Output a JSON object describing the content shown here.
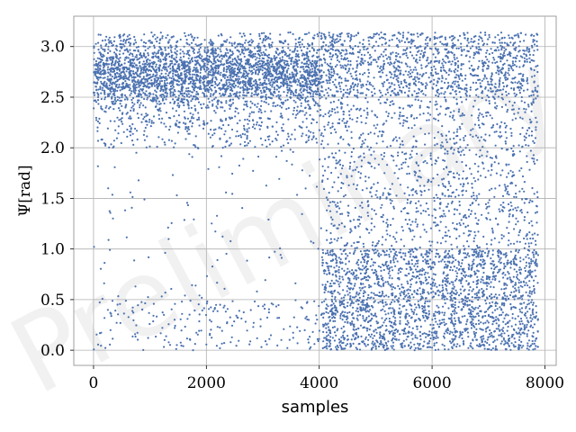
{
  "chart_data": {
    "type": "scatter",
    "title": "",
    "xlabel": "samples",
    "ylabel": "Ψ[rad]",
    "xlim": [
      -350,
      8200
    ],
    "ylim": [
      -0.15,
      3.3
    ],
    "xticks": [
      0,
      2000,
      4000,
      6000,
      8000
    ],
    "yticks": [
      0.0,
      0.5,
      1.0,
      1.5,
      2.0,
      2.5,
      3.0
    ],
    "xtick_labels": [
      "0",
      "2000",
      "4000",
      "6000",
      "8000"
    ],
    "ytick_labels": [
      "0.0",
      "0.5",
      "1.0",
      "1.5",
      "2.0",
      "2.5",
      "3.0"
    ],
    "grid": true,
    "legend": "none",
    "marker_color": "#4c72b0",
    "watermark": "Preliminary",
    "series": [
      {
        "segments": [
          {
            "x_range": [
              0,
              4050
            ],
            "points": 3600,
            "clusters": [
              {
                "weight": 0.86,
                "y_mean": 2.72,
                "y_sd": 0.2,
                "y_min": 2.15,
                "y_max": 3.14
              },
              {
                "weight": 0.06,
                "y_range": [
                  2.0,
                  2.3
                ]
              },
              {
                "weight": 0.03,
                "y_range": [
                  0.3,
                  2.0
                ]
              },
              {
                "weight": 0.05,
                "y_range": [
                  0.0,
                  0.5
                ]
              }
            ]
          },
          {
            "x_range": [
              4050,
              7880
            ],
            "points": 4600,
            "clusters": [
              {
                "weight": 0.26,
                "y_range": [
                  2.5,
                  3.14
                ]
              },
              {
                "weight": 0.24,
                "y_range": [
                  1.0,
                  2.5
                ]
              },
              {
                "weight": 0.5,
                "y_range": [
                  0.0,
                  1.0
                ]
              }
            ]
          }
        ]
      }
    ]
  }
}
